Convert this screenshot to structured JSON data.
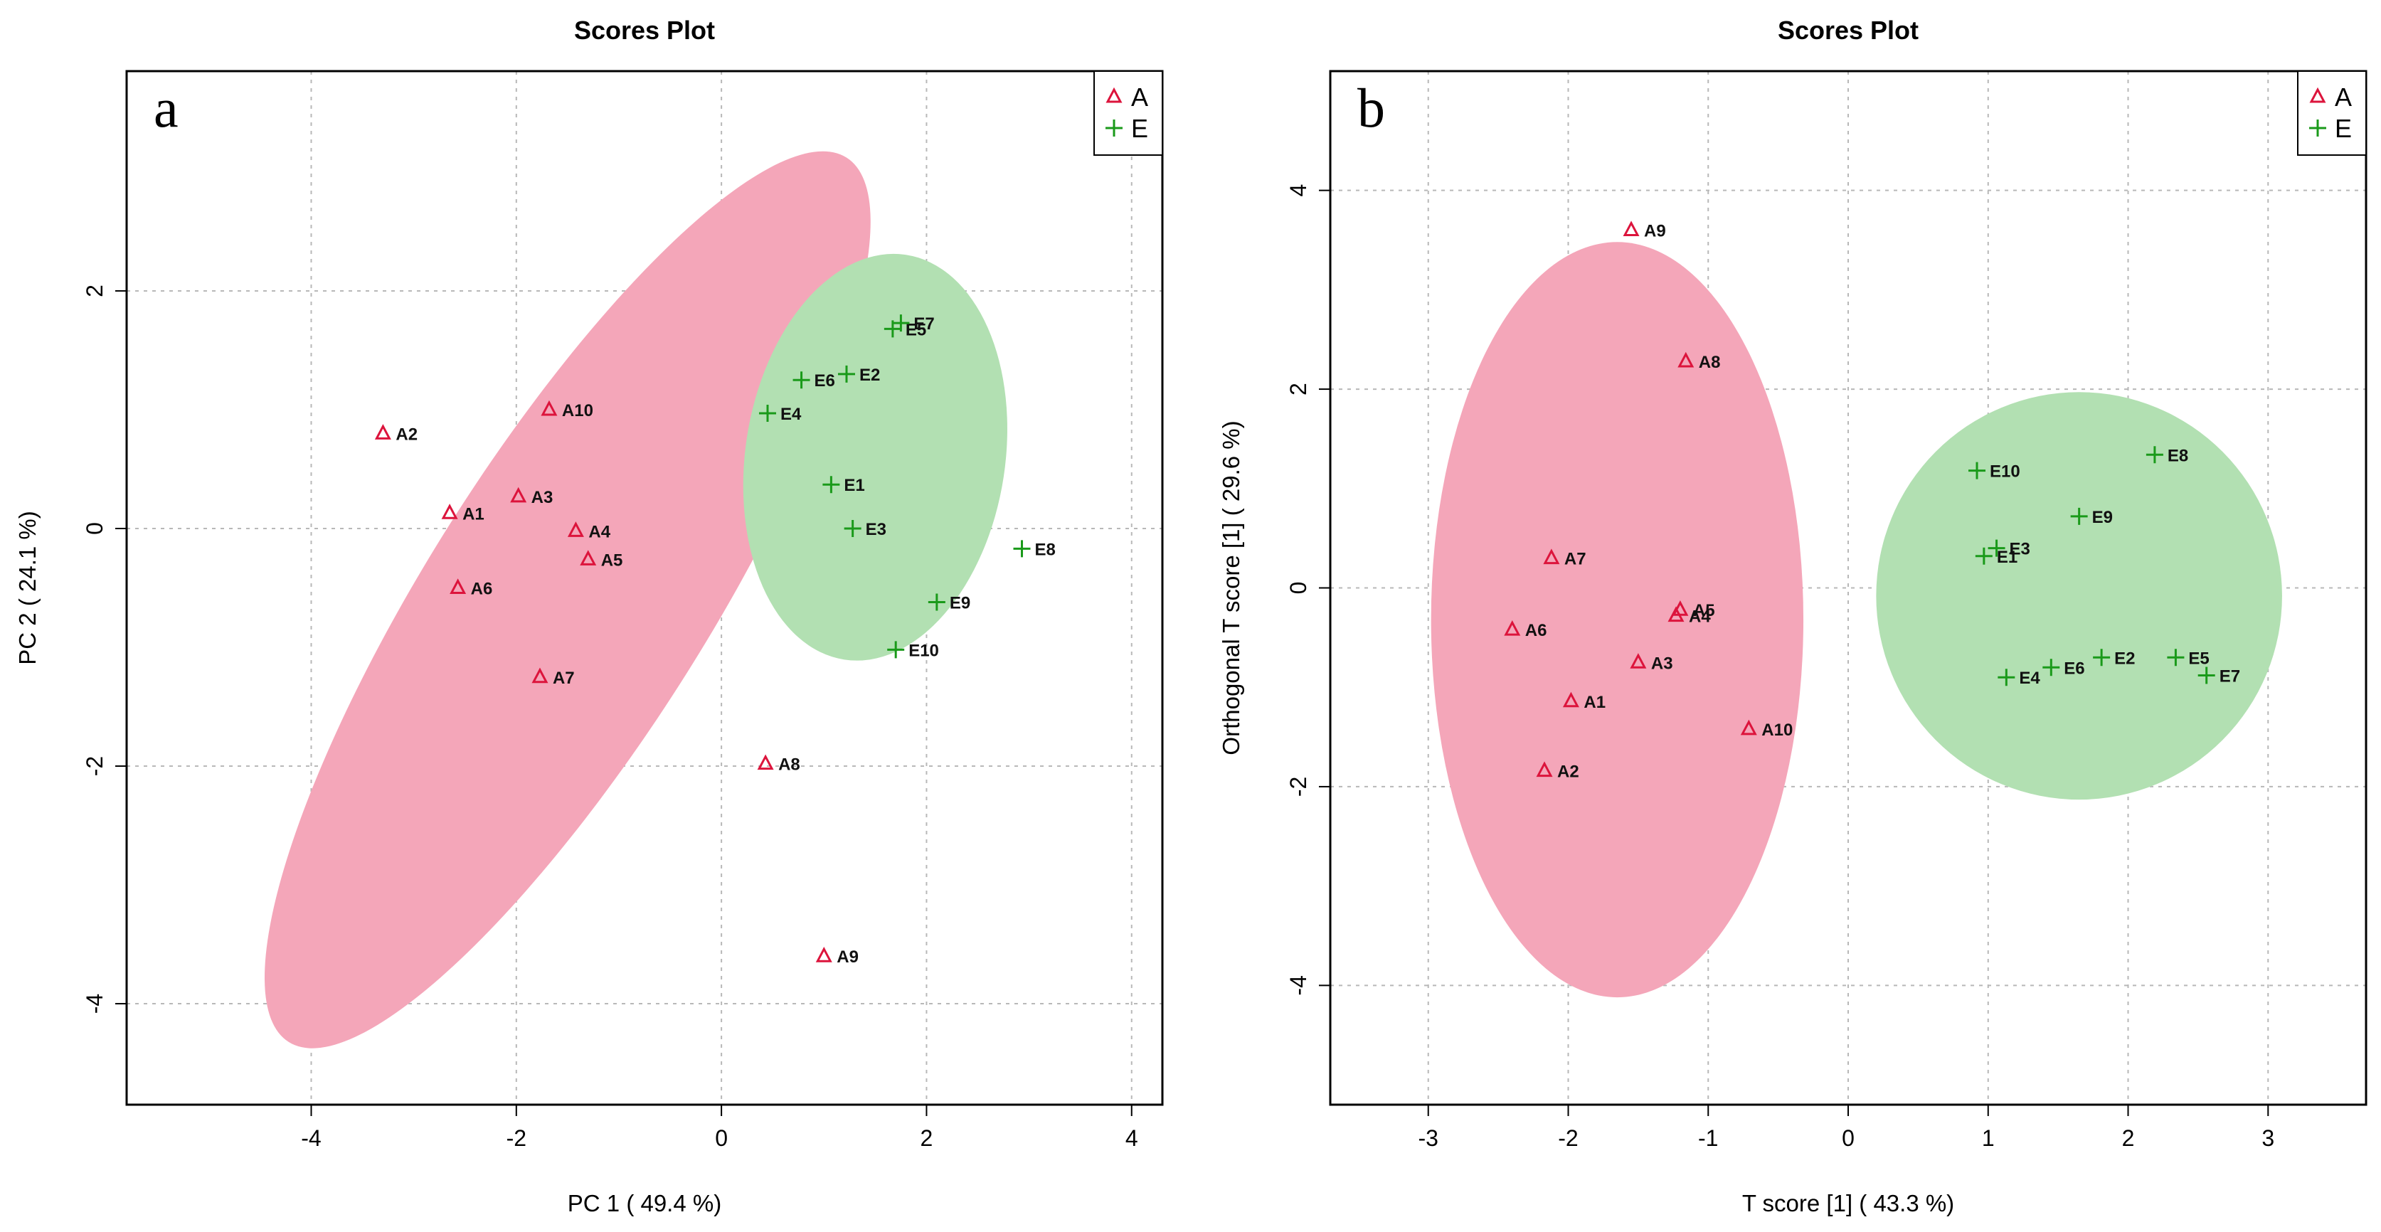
{
  "colors": {
    "group_A": "#dc143c",
    "group_A_fill": "#f4a6b9",
    "group_E": "#1a9a1a",
    "group_E_fill": "#b2e0b2"
  },
  "chart_data": [
    {
      "type": "scatter",
      "panel_letter": "a",
      "title": "Scores Plot",
      "xlabel": "PC 1 ( 49.4 %)",
      "ylabel": "PC 2 ( 24.1 %)",
      "xlim": [
        -5.8,
        4.3
      ],
      "ylim": [
        -4.85,
        3.85
      ],
      "xticks": [
        -4,
        -2,
        0,
        2,
        4
      ],
      "yticks": [
        -4,
        -2,
        0,
        2
      ],
      "grid": true,
      "legend": {
        "position": "top-right",
        "entries": [
          "A",
          "E"
        ]
      },
      "series": [
        {
          "name": "A",
          "marker": "triangle",
          "points": [
            {
              "label": "A1",
              "x": -2.65,
              "y": 0.13
            },
            {
              "label": "A2",
              "x": -3.3,
              "y": 0.8
            },
            {
              "label": "A3",
              "x": -1.98,
              "y": 0.27
            },
            {
              "label": "A4",
              "x": -1.42,
              "y": -0.02
            },
            {
              "label": "A5",
              "x": -1.3,
              "y": -0.26
            },
            {
              "label": "A6",
              "x": -2.57,
              "y": -0.5
            },
            {
              "label": "A7",
              "x": -1.77,
              "y": -1.25
            },
            {
              "label": "A8",
              "x": 0.43,
              "y": -1.98
            },
            {
              "label": "A9",
              "x": 1.0,
              "y": -3.6
            },
            {
              "label": "A10",
              "x": -1.68,
              "y": 1.0
            }
          ]
        },
        {
          "name": "E",
          "marker": "plus",
          "points": [
            {
              "label": "E1",
              "x": 1.07,
              "y": 0.37
            },
            {
              "label": "E2",
              "x": 1.22,
              "y": 1.3
            },
            {
              "label": "E3",
              "x": 1.28,
              "y": 0.0
            },
            {
              "label": "E4",
              "x": 0.45,
              "y": 0.97
            },
            {
              "label": "E5",
              "x": 1.67,
              "y": 1.68
            },
            {
              "label": "E6",
              "x": 0.78,
              "y": 1.25
            },
            {
              "label": "E7",
              "x": 1.75,
              "y": 1.73
            },
            {
              "label": "E8",
              "x": 2.93,
              "y": -0.17
            },
            {
              "label": "E9",
              "x": 2.1,
              "y": -0.62
            },
            {
              "label": "E10",
              "x": 1.7,
              "y": -1.02
            }
          ]
        }
      ],
      "ellipses": [
        {
          "group": "A",
          "cx": -1.5,
          "cy": -0.6,
          "rx": 4.61,
          "ry": 1.29,
          "angle_deg": 53.85
        },
        {
          "group": "E",
          "cx": 1.5,
          "cy": 0.6,
          "rx": 1.73,
          "ry": 1.26,
          "angle_deg": 80
        }
      ]
    },
    {
      "type": "scatter",
      "panel_letter": "b",
      "title": "Scores Plot",
      "xlabel": "T score [1] ( 43.3 %)",
      "ylabel": "Orthogonal T score [1] ( 29.6 %)",
      "xlim": [
        -3.7,
        3.7
      ],
      "ylim": [
        -5.2,
        5.2
      ],
      "xticks": [
        -3,
        -2,
        -1,
        0,
        1,
        2,
        3
      ],
      "yticks": [
        -4,
        -2,
        0,
        2,
        4
      ],
      "grid": true,
      "legend": {
        "position": "top-right",
        "entries": [
          "A",
          "E"
        ]
      },
      "series": [
        {
          "name": "A",
          "marker": "triangle",
          "points": [
            {
              "label": "A1",
              "x": -1.98,
              "y": -1.14
            },
            {
              "label": "A2",
              "x": -2.17,
              "y": -1.84
            },
            {
              "label": "A3",
              "x": -1.5,
              "y": -0.75
            },
            {
              "label": "A4",
              "x": -1.23,
              "y": -0.28
            },
            {
              "label": "A5",
              "x": -1.2,
              "y": -0.22
            },
            {
              "label": "A6",
              "x": -2.4,
              "y": -0.42
            },
            {
              "label": "A7",
              "x": -2.12,
              "y": 0.3
            },
            {
              "label": "A8",
              "x": -1.16,
              "y": 2.28
            },
            {
              "label": "A9",
              "x": -1.55,
              "y": 3.6
            },
            {
              "label": "A10",
              "x": -0.71,
              "y": -1.42
            }
          ]
        },
        {
          "name": "E",
          "marker": "plus",
          "points": [
            {
              "label": "E1",
              "x": 0.97,
              "y": 0.32
            },
            {
              "label": "E2",
              "x": 1.81,
              "y": -0.7
            },
            {
              "label": "E3",
              "x": 1.06,
              "y": 0.4
            },
            {
              "label": "E4",
              "x": 1.13,
              "y": -0.9
            },
            {
              "label": "E5",
              "x": 2.34,
              "y": -0.7
            },
            {
              "label": "E6",
              "x": 1.45,
              "y": -0.8
            },
            {
              "label": "E7",
              "x": 2.56,
              "y": -0.88
            },
            {
              "label": "E8",
              "x": 2.19,
              "y": 1.34
            },
            {
              "label": "E9",
              "x": 1.65,
              "y": 0.72
            },
            {
              "label": "E10",
              "x": 0.92,
              "y": 1.18
            }
          ]
        }
      ],
      "ellipses": [
        {
          "group": "A",
          "cx": -1.65,
          "cy": -0.32,
          "rx": 1.33,
          "ry": 3.8,
          "angle_deg": 0
        },
        {
          "group": "E",
          "cx": 1.65,
          "cy": -0.08,
          "rx": 1.45,
          "ry": 2.05,
          "angle_deg": 0
        }
      ]
    }
  ]
}
